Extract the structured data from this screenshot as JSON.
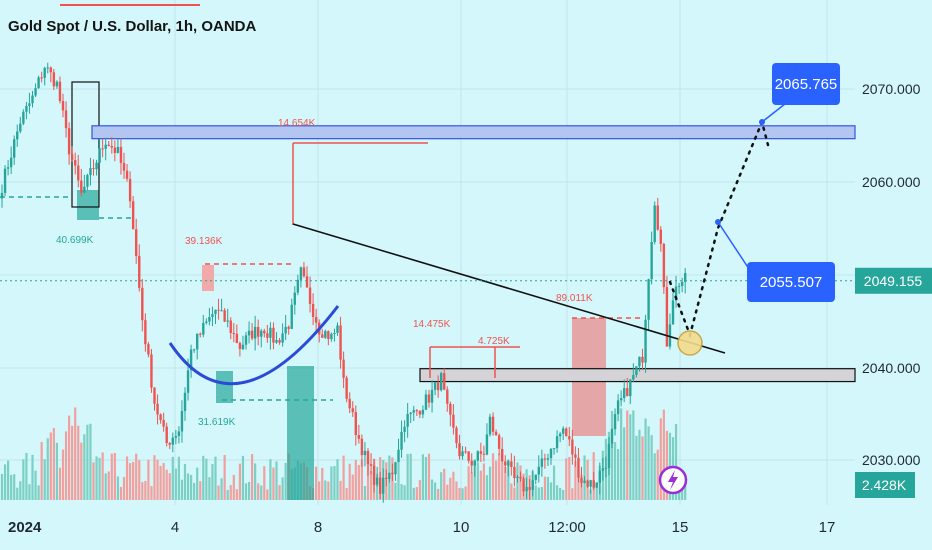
{
  "header": {
    "title": "Gold Spot / U.S. Dollar, 1h, OANDA"
  },
  "colors": {
    "background": "#d4f7fb",
    "bull": "#26a69a",
    "bear": "#ef5350",
    "price_tag": "#26a69a",
    "callout": "#2962ff",
    "zone_fill": "#b3c6f2",
    "zone_stroke": "#3355dd",
    "support_fill": "#d3d3d8",
    "trendline": "#111111",
    "curve": "#2a4bd7"
  },
  "chart_data": {
    "type": "candlestick",
    "symbol": "Gold Spot / U.S. Dollar",
    "interval": "1h",
    "source": "OANDA",
    "x_tick_labels": [
      "2024",
      "4",
      "8",
      "10",
      "12:00",
      "15",
      "17"
    ],
    "y_tick_labels": [
      "2070.000",
      "2060.000",
      "2040.000",
      "2030.000"
    ],
    "ylim": [
      2025.0,
      2074.0
    ],
    "grid": true,
    "last_price": 2049.155,
    "volume_last": "2.428K",
    "targets": [
      2065.765,
      2055.507
    ],
    "resistance_zone": [
      2064.6,
      2066.0
    ],
    "support_zone": [
      2038.2,
      2039.6
    ],
    "volume_annotations": [
      {
        "label": "40.699K",
        "color": "#26a69a"
      },
      {
        "label": "39.136K",
        "color": "#ef5350"
      },
      {
        "label": "31.619K",
        "color": "#26a69a"
      },
      {
        "label": "14.654K",
        "color": "#ef5350"
      },
      {
        "label": "14.475K",
        "color": "#ef5350"
      },
      {
        "label": "4.725K",
        "color": "#ef5350"
      },
      {
        "label": "89.011K",
        "color": "#ef5350"
      }
    ],
    "series": [
      {
        "type": "ohlc-key-points",
        "points": [
          {
            "x": 0,
            "close": 2059.5
          },
          {
            "x": 6,
            "close": 2066.5
          },
          {
            "x": 10,
            "close": 2069.0
          },
          {
            "x": 14,
            "close": 2072.5
          },
          {
            "x": 18,
            "close": 2070.5
          },
          {
            "x": 22,
            "close": 2063.5
          },
          {
            "x": 26,
            "close": 2058.5
          },
          {
            "x": 30,
            "close": 2061.5
          },
          {
            "x": 34,
            "close": 2064.5
          },
          {
            "x": 38,
            "close": 2063.0
          },
          {
            "x": 42,
            "close": 2058.5
          },
          {
            "x": 46,
            "close": 2045.0
          },
          {
            "x": 50,
            "close": 2036.0
          },
          {
            "x": 54,
            "close": 2031.5
          },
          {
            "x": 58,
            "close": 2033.0
          },
          {
            "x": 62,
            "close": 2041.5
          },
          {
            "x": 66,
            "close": 2044.0
          },
          {
            "x": 70,
            "close": 2046.0
          },
          {
            "x": 74,
            "close": 2044.5
          },
          {
            "x": 78,
            "close": 2042.0
          },
          {
            "x": 82,
            "close": 2043.5
          },
          {
            "x": 86,
            "close": 2044.0
          },
          {
            "x": 90,
            "close": 2042.5
          },
          {
            "x": 94,
            "close": 2044.5
          },
          {
            "x": 98,
            "close": 2050.0
          },
          {
            "x": 100,
            "close": 2048.0
          },
          {
            "x": 104,
            "close": 2044.0
          },
          {
            "x": 108,
            "close": 2043.0
          },
          {
            "x": 110,
            "close": 2044.0
          },
          {
            "x": 112,
            "close": 2038.0
          },
          {
            "x": 116,
            "close": 2033.0
          },
          {
            "x": 120,
            "close": 2029.0
          },
          {
            "x": 124,
            "close": 2026.5
          },
          {
            "x": 128,
            "close": 2028.5
          },
          {
            "x": 132,
            "close": 2034.0
          },
          {
            "x": 136,
            "close": 2035.0
          },
          {
            "x": 140,
            "close": 2036.5
          },
          {
            "x": 144,
            "close": 2038.5
          },
          {
            "x": 146,
            "close": 2035.0
          },
          {
            "x": 150,
            "close": 2030.5
          },
          {
            "x": 154,
            "close": 2029.5
          },
          {
            "x": 158,
            "close": 2030.5
          },
          {
            "x": 160,
            "close": 2034.0
          },
          {
            "x": 164,
            "close": 2030.0
          },
          {
            "x": 168,
            "close": 2027.5
          },
          {
            "x": 172,
            "close": 2026.5
          },
          {
            "x": 176,
            "close": 2028.5
          },
          {
            "x": 180,
            "close": 2031.0
          },
          {
            "x": 184,
            "close": 2033.0
          },
          {
            "x": 186,
            "close": 2031.5
          },
          {
            "x": 190,
            "close": 2027.5
          },
          {
            "x": 194,
            "close": 2027.0
          },
          {
            "x": 198,
            "close": 2029.5
          },
          {
            "x": 202,
            "close": 2035.5
          },
          {
            "x": 206,
            "close": 2038.0
          },
          {
            "x": 210,
            "close": 2041.0
          },
          {
            "x": 212,
            "close": 2050.0
          },
          {
            "x": 214,
            "close": 2058.0
          },
          {
            "x": 216,
            "close": 2053.0
          },
          {
            "x": 218,
            "close": 2042.5
          },
          {
            "x": 220,
            "close": 2047.5
          },
          {
            "x": 222,
            "close": 2049.0
          },
          {
            "x": 224,
            "close": 2049.2
          }
        ]
      }
    ]
  }
}
